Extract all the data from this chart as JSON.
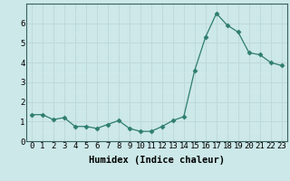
{
  "x": [
    0,
    1,
    2,
    3,
    4,
    5,
    6,
    7,
    8,
    9,
    10,
    11,
    12,
    13,
    14,
    15,
    16,
    17,
    18,
    19,
    20,
    21,
    22,
    23
  ],
  "y": [
    1.35,
    1.35,
    1.1,
    1.2,
    0.75,
    0.75,
    0.65,
    0.85,
    1.05,
    0.65,
    0.5,
    0.5,
    0.75,
    1.05,
    1.25,
    3.6,
    5.3,
    6.5,
    5.9,
    5.55,
    4.5,
    4.4,
    4.0,
    3.85
  ],
  "xlabel": "Humidex (Indice chaleur)",
  "xlim": [
    -0.5,
    23.5
  ],
  "ylim": [
    0,
    7
  ],
  "yticks": [
    0,
    1,
    2,
    3,
    4,
    5,
    6
  ],
  "xticks": [
    0,
    1,
    2,
    3,
    4,
    5,
    6,
    7,
    8,
    9,
    10,
    11,
    12,
    13,
    14,
    15,
    16,
    17,
    18,
    19,
    20,
    21,
    22,
    23
  ],
  "line_color": "#2e7d6e",
  "marker": "D",
  "marker_size": 2.5,
  "bg_color": "#cce8e8",
  "grid_major_color": "#c0d8d8",
  "grid_minor_color": "#d4e8e8",
  "spine_color": "#3a6060",
  "tick_fontsize": 6.5,
  "xlabel_fontsize": 7.5
}
